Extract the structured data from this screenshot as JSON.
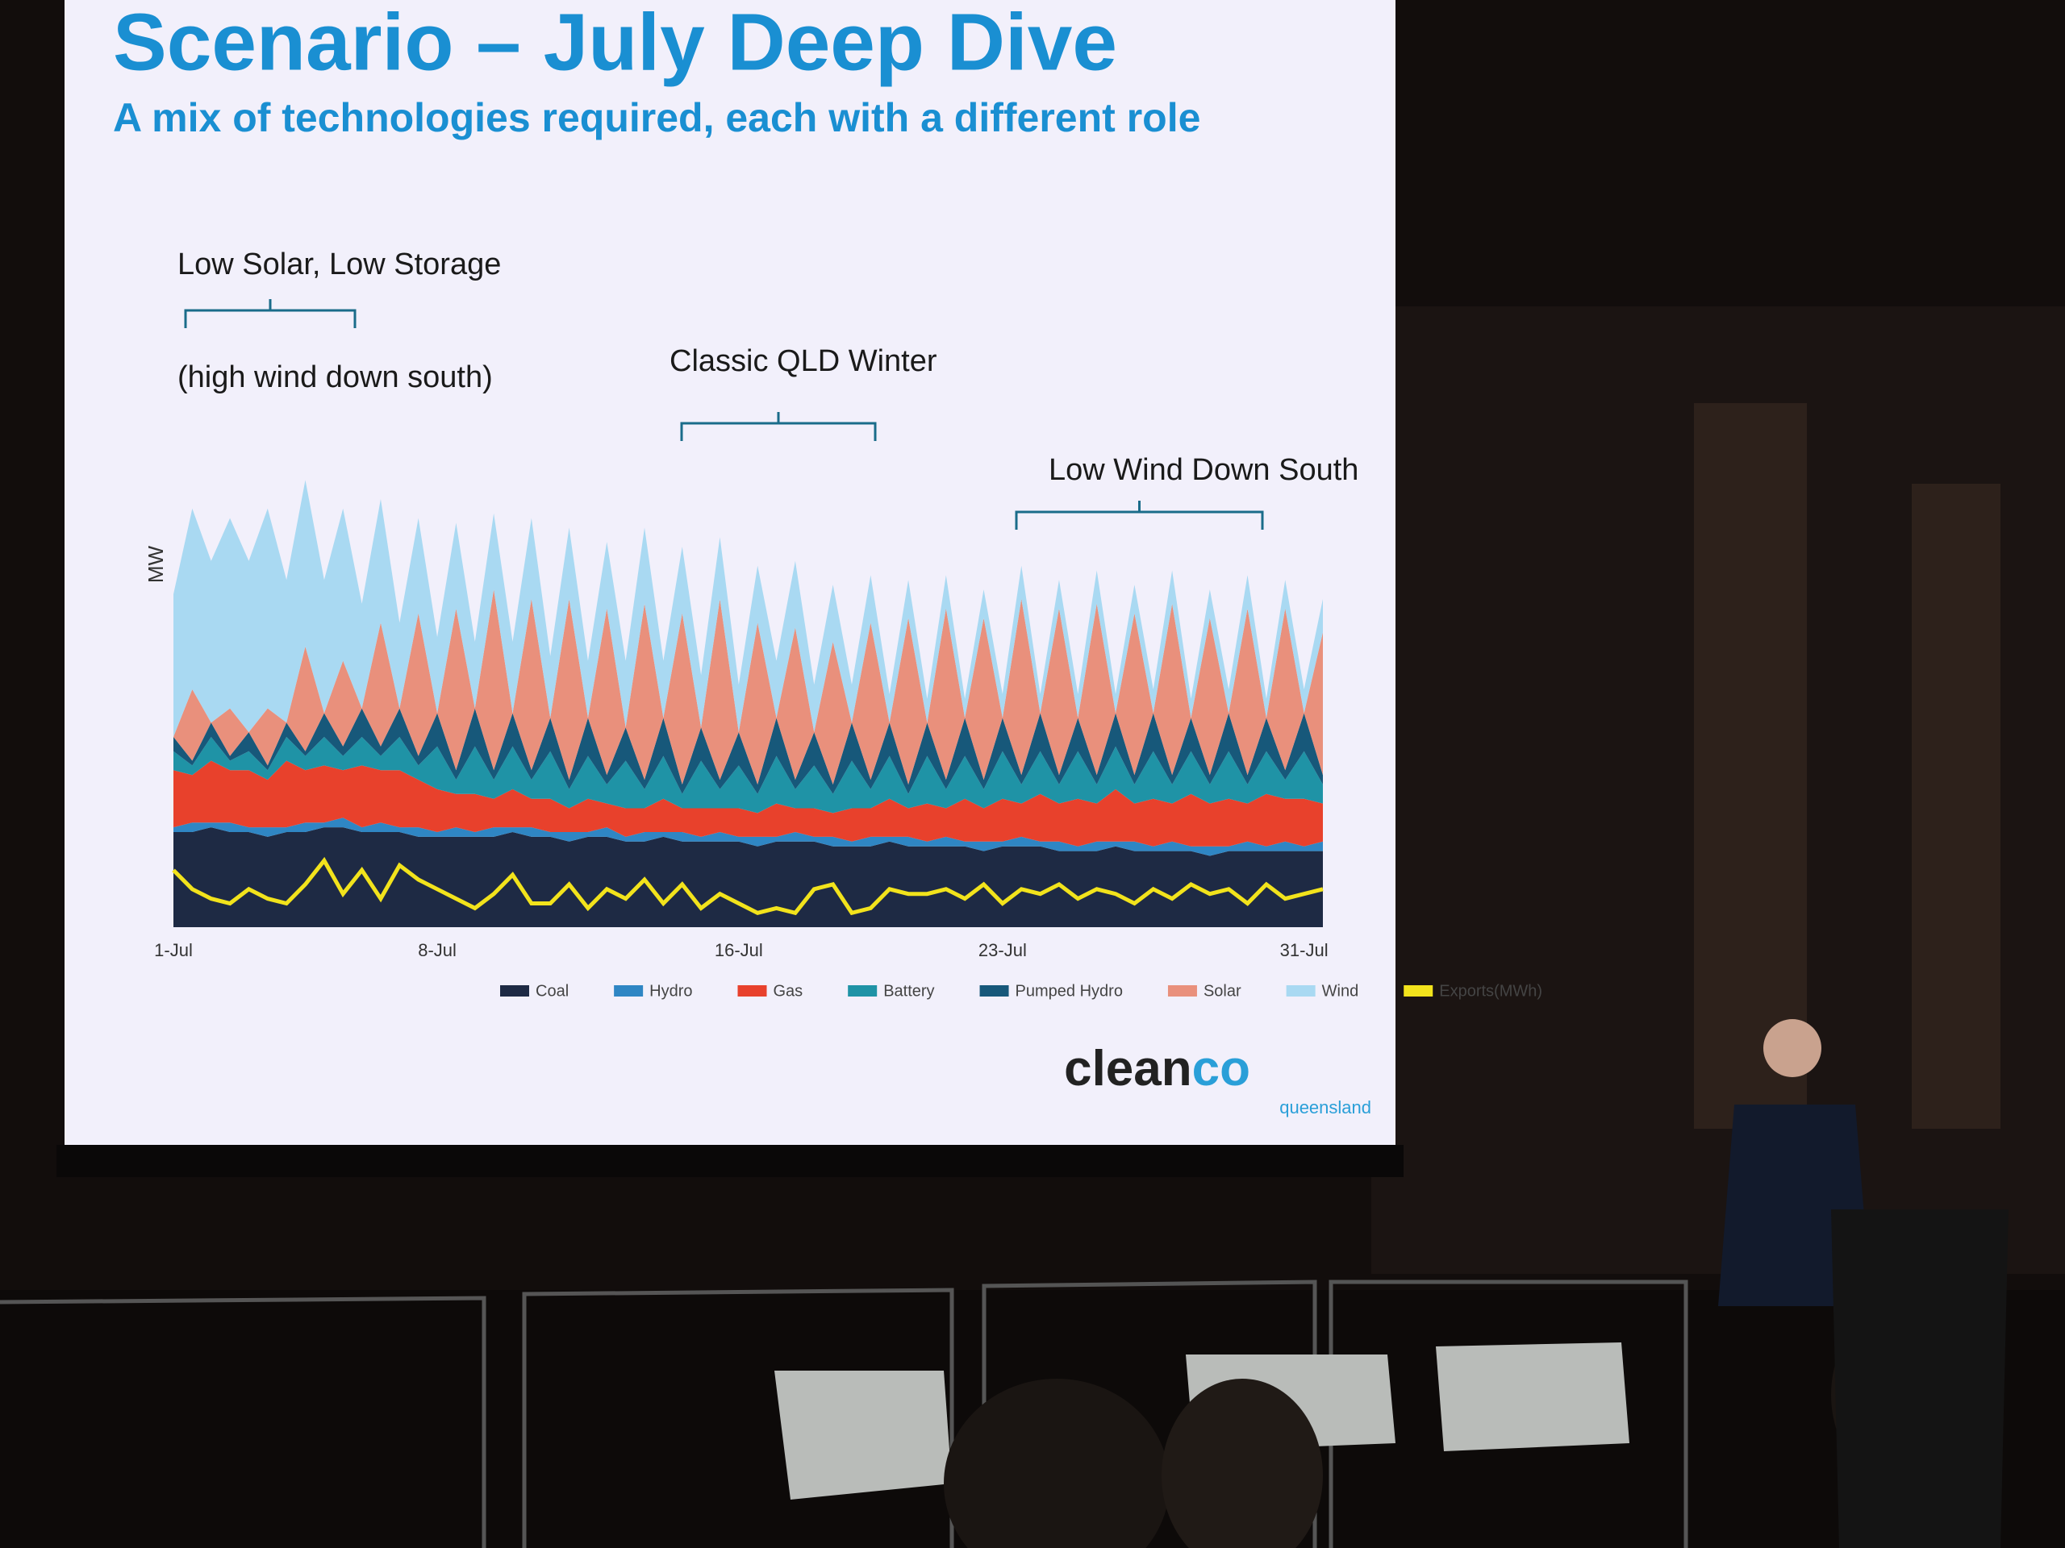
{
  "chart_data": {
    "type": "stacked-area",
    "title": "Scenario – July Deep Dive",
    "subtitle": "A mix of technologies required, each with a different role",
    "y_label": "MW",
    "annotations": [
      {
        "text": "Low Solar, Low Storage"
      },
      {
        "text": "(high wind down south)"
      },
      {
        "text": "Classic QLD Winter"
      },
      {
        "text": "Low Wind Down South"
      }
    ],
    "categories": [
      "1-Jul",
      null,
      null,
      null,
      null,
      null,
      null,
      null,
      null,
      null,
      null,
      null,
      null,
      null,
      "8-Jul",
      null,
      null,
      null,
      null,
      null,
      null,
      null,
      null,
      null,
      null,
      null,
      null,
      null,
      null,
      null,
      "16-Jul",
      null,
      null,
      null,
      null,
      null,
      null,
      null,
      null,
      null,
      null,
      null,
      null,
      null,
      "23-Jul",
      null,
      null,
      null,
      null,
      null,
      null,
      null,
      null,
      null,
      null,
      null,
      null,
      null,
      null,
      null,
      "31-Jul",
      null
    ],
    "ylim": [
      0,
      100
    ],
    "series": [
      {
        "name": "Coal",
        "color": "#1e2a44",
        "values": [
          20,
          20,
          21,
          20,
          20,
          19,
          20,
          20,
          21,
          21,
          20,
          20,
          20,
          19,
          19,
          19,
          19,
          19,
          20,
          19,
          19,
          18,
          19,
          19,
          18,
          18,
          19,
          18,
          18,
          18,
          18,
          17,
          18,
          18,
          18,
          17,
          17,
          17,
          18,
          17,
          17,
          17,
          17,
          16,
          17,
          17,
          17,
          16,
          16,
          16,
          17,
          16,
          16,
          16,
          16,
          15,
          16,
          16,
          16,
          16,
          16,
          16
        ]
      },
      {
        "name": "Hydro",
        "color": "#2f86c4",
        "values": [
          1,
          2,
          1,
          2,
          1,
          2,
          1,
          2,
          1,
          2,
          1,
          2,
          1,
          2,
          1,
          2,
          1,
          2,
          1,
          2,
          1,
          2,
          1,
          2,
          1,
          2,
          1,
          2,
          1,
          2,
          1,
          2,
          1,
          2,
          1,
          2,
          1,
          2,
          1,
          2,
          1,
          2,
          1,
          2,
          1,
          2,
          1,
          2,
          1,
          2,
          1,
          2,
          1,
          2,
          1,
          2,
          1,
          2,
          1,
          2,
          1,
          2
        ]
      },
      {
        "name": "Gas",
        "color": "#e8412c",
        "values": [
          12,
          10,
          13,
          11,
          12,
          10,
          14,
          11,
          12,
          10,
          13,
          11,
          12,
          10,
          9,
          7,
          8,
          6,
          8,
          6,
          7,
          5,
          7,
          5,
          6,
          5,
          7,
          5,
          6,
          5,
          6,
          5,
          7,
          5,
          6,
          5,
          7,
          6,
          8,
          6,
          8,
          6,
          9,
          7,
          9,
          7,
          10,
          8,
          10,
          8,
          11,
          8,
          10,
          8,
          11,
          9,
          10,
          8,
          11,
          9,
          10,
          8
        ]
      },
      {
        "name": "Battery",
        "color": "#1f93a6",
        "values": [
          4,
          2,
          5,
          2,
          4,
          2,
          5,
          3,
          6,
          3,
          6,
          3,
          7,
          3,
          9,
          3,
          10,
          4,
          9,
          4,
          10,
          4,
          9,
          4,
          10,
          4,
          9,
          3,
          10,
          4,
          9,
          4,
          10,
          4,
          9,
          4,
          10,
          4,
          9,
          3,
          10,
          4,
          9,
          4,
          10,
          4,
          9,
          4,
          10,
          4,
          9,
          4,
          10,
          4,
          9,
          4,
          10,
          4,
          9,
          4,
          10,
          4
        ]
      },
      {
        "name": "Pumped Hydro",
        "color": "#17587a",
        "values": [
          3,
          1,
          3,
          1,
          4,
          1,
          3,
          1,
          5,
          2,
          6,
          2,
          6,
          2,
          7,
          2,
          8,
          2,
          7,
          2,
          7,
          2,
          8,
          2,
          7,
          2,
          8,
          2,
          7,
          2,
          7,
          2,
          8,
          2,
          7,
          2,
          8,
          2,
          7,
          2,
          7,
          2,
          8,
          2,
          7,
          2,
          8,
          2,
          7,
          2,
          7,
          2,
          8,
          2,
          7,
          2,
          8,
          2,
          7,
          2,
          8,
          2
        ]
      },
      {
        "name": "Solar",
        "color": "#e9907c",
        "values": [
          0,
          15,
          0,
          10,
          0,
          12,
          0,
          22,
          0,
          18,
          0,
          26,
          0,
          30,
          0,
          34,
          0,
          38,
          0,
          36,
          0,
          38,
          0,
          35,
          0,
          37,
          0,
          36,
          0,
          38,
          0,
          34,
          0,
          32,
          0,
          30,
          0,
          33,
          0,
          35,
          0,
          36,
          0,
          34,
          0,
          37,
          0,
          35,
          0,
          36,
          0,
          34,
          0,
          36,
          0,
          33,
          0,
          35,
          0,
          34,
          0,
          30
        ]
      },
      {
        "name": "Wind",
        "color": "#a9d9f2",
        "values": [
          30,
          38,
          34,
          40,
          36,
          42,
          30,
          35,
          28,
          32,
          22,
          26,
          18,
          20,
          16,
          18,
          14,
          16,
          15,
          17,
          13,
          15,
          12,
          14,
          14,
          16,
          12,
          14,
          11,
          13,
          10,
          12,
          12,
          14,
          10,
          12,
          8,
          10,
          6,
          8,
          5,
          7,
          4,
          6,
          5,
          7,
          4,
          6,
          5,
          7,
          4,
          6,
          5,
          7,
          4,
          6,
          5,
          7,
          4,
          6,
          5,
          7
        ]
      },
      {
        "name": "Exports(MWh)",
        "color": "#f2e31c",
        "line": true,
        "values": [
          12,
          8,
          6,
          5,
          8,
          6,
          5,
          9,
          14,
          7,
          12,
          6,
          13,
          10,
          8,
          6,
          4,
          7,
          11,
          5,
          5,
          9,
          4,
          8,
          6,
          10,
          5,
          9,
          4,
          7,
          5,
          3,
          4,
          3,
          8,
          9,
          3,
          4,
          8,
          7,
          7,
          8,
          6,
          9,
          5,
          8,
          7,
          9,
          6,
          8,
          7,
          5,
          8,
          6,
          9,
          7,
          8,
          5,
          9,
          6,
          7,
          8
        ]
      }
    ]
  },
  "logo": {
    "name": "clean",
    "accent": "co",
    "tagline": "queensland"
  }
}
